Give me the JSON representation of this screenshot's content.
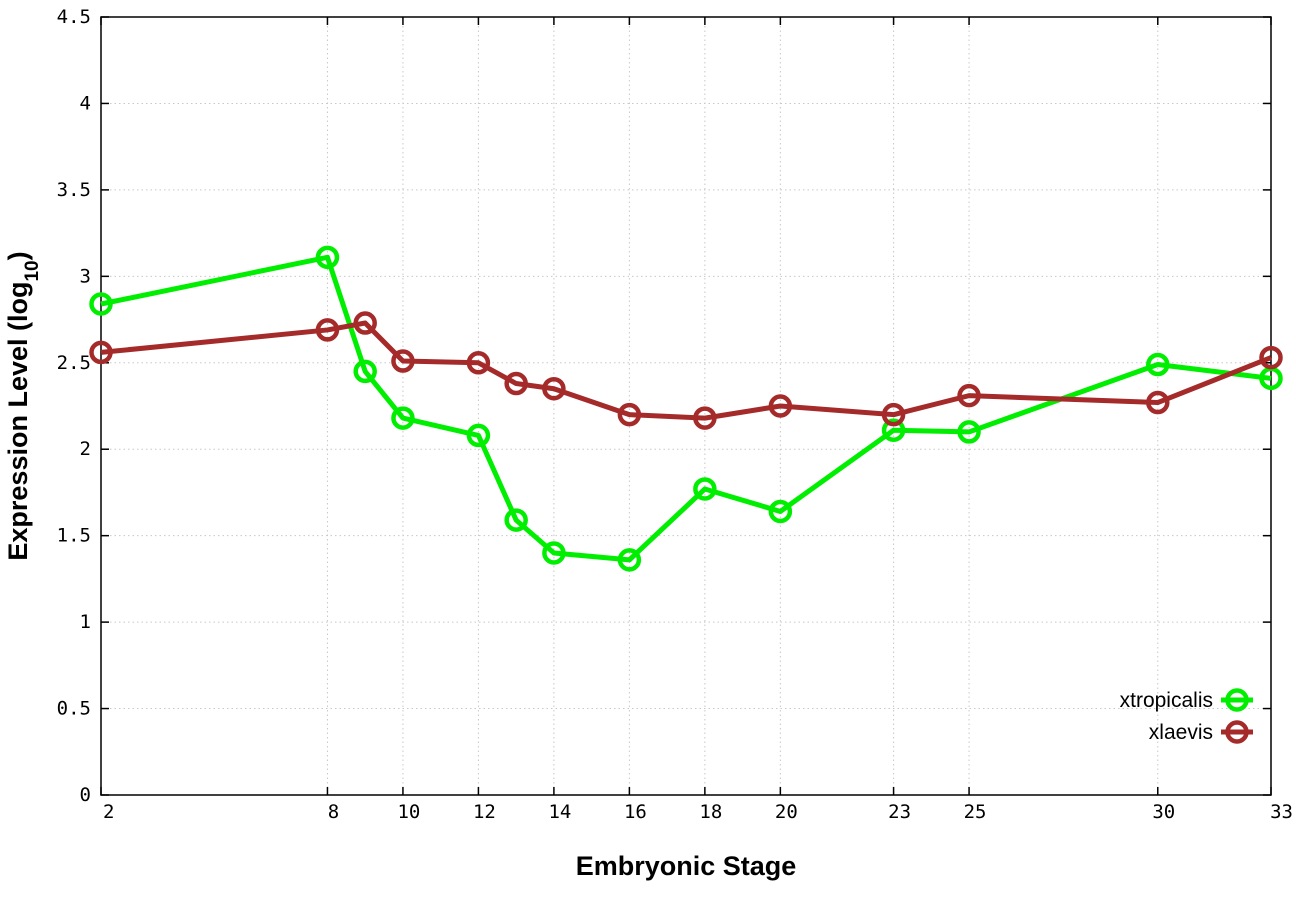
{
  "chart_data": {
    "type": "line",
    "title": "",
    "xlabel": "Embryonic Stage",
    "ylabel_main": "Expression Level (log",
    "ylabel_sub": "10",
    "ylabel_close": ")",
    "x": [
      2,
      8,
      9,
      10,
      12,
      13,
      14,
      16,
      18,
      20,
      23,
      25,
      30,
      33
    ],
    "x_ticks": [
      2,
      8,
      10,
      12,
      14,
      16,
      18,
      20,
      23,
      25,
      30,
      33
    ],
    "y_ticks": [
      "0",
      "0.5",
      "1",
      "1.5",
      "2",
      "2.5",
      "3",
      "3.5",
      "4",
      "4.5"
    ],
    "xlim": [
      2,
      33
    ],
    "ylim": [
      0,
      4.5
    ],
    "grid": true,
    "legend_position": "bottom-right",
    "series": [
      {
        "name": "xtropicalis",
        "color": "#00ee00",
        "marker": "open-circle",
        "values": [
          2.84,
          3.11,
          2.45,
          2.18,
          2.08,
          1.59,
          1.4,
          1.36,
          1.77,
          1.64,
          2.11,
          2.1,
          2.49,
          2.41
        ]
      },
      {
        "name": "xlaevis",
        "color": "#a52a2a",
        "marker": "open-circle",
        "values": [
          2.56,
          2.69,
          2.73,
          2.51,
          2.5,
          2.38,
          2.35,
          2.2,
          2.18,
          2.25,
          2.2,
          2.31,
          2.27,
          2.53
        ]
      }
    ]
  }
}
